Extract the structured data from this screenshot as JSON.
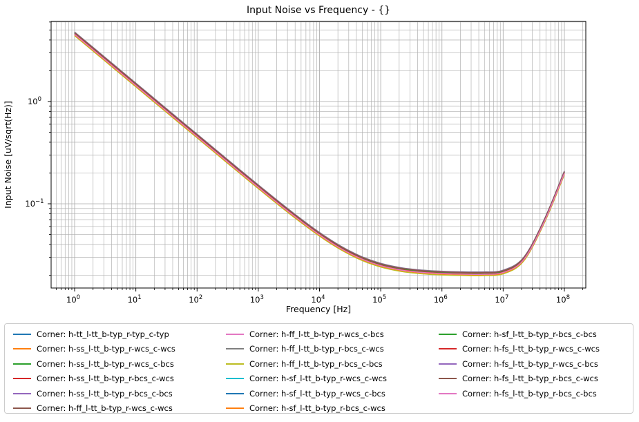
{
  "chart_data": {
    "type": "line",
    "title": "Input Noise vs Frequency - {}",
    "xlabel": "Frequency [Hz]",
    "ylabel": "Input Noise [uV/sqrt(Hz)]",
    "x_scale": "log",
    "y_scale": "log",
    "xlim": [
      0.413,
      224000000
    ],
    "ylim": [
      0.015,
      6.08
    ],
    "x_tick_exponents": [
      0,
      1,
      2,
      3,
      4,
      5,
      6,
      7,
      8
    ],
    "y_tick_exponents": [
      0,
      -1
    ],
    "grid": "both",
    "grid_color": "#b0b0b0",
    "spine_color": "#000000",
    "x": [
      1,
      2.154,
      4.642,
      10,
      21.54,
      46.42,
      100,
      215.4,
      464.2,
      1000,
      2154,
      4642,
      10000,
      21540,
      46420,
      100000,
      215400,
      464200,
      1000000,
      2154000,
      4642000,
      10000000,
      21540000,
      46420000,
      100000000
    ],
    "base_values": [
      4.6,
      3.134,
      2.135,
      1.455,
      0.9913,
      0.6755,
      0.4605,
      0.3141,
      0.2145,
      0.1469,
      0.1012,
      0.07056,
      0.05036,
      0.03745,
      0.02959,
      0.02513,
      0.02276,
      0.02158,
      0.021,
      0.02074,
      0.0207,
      0.0215,
      0.02865,
      0.06649,
      0.201
    ],
    "series": [
      {
        "name": "Corner: h-tt_l-tt_b-typ_r-typ_c-typ",
        "color": "#1f77b4",
        "scale": 1.0
      },
      {
        "name": "Corner: h-ss_l-tt_b-typ_r-wcs_c-wcs",
        "color": "#ff7f0e",
        "scale": 1.01
      },
      {
        "name": "Corner: h-ss_l-tt_b-typ_r-wcs_c-bcs",
        "color": "#2ca02c",
        "scale": 1.022
      },
      {
        "name": "Corner: h-ss_l-tt_b-typ_r-bcs_c-wcs",
        "color": "#d62728",
        "scale": 0.992
      },
      {
        "name": "Corner: h-ss_l-tt_b-typ_r-bcs_c-bcs",
        "color": "#9467bd",
        "scale": 1.015
      },
      {
        "name": "Corner: h-ff_l-tt_b-typ_r-wcs_c-wcs",
        "color": "#8c564b",
        "scale": 1.03
      },
      {
        "name": "Corner: h-ff_l-tt_b-typ_r-wcs_c-bcs",
        "color": "#e377c2",
        "scale": 0.985
      },
      {
        "name": "Corner: h-ff_l-tt_b-typ_r-bcs_c-wcs",
        "color": "#7f7f7f",
        "scale": 1.042
      },
      {
        "name": "Corner: h-ff_l-tt_b-typ_r-bcs_c-bcs",
        "color": "#bcbd22",
        "scale": 0.958
      },
      {
        "name": "Corner: h-sf_l-tt_b-typ_r-wcs_c-wcs",
        "color": "#17becf",
        "scale": 1.005
      },
      {
        "name": "Corner: h-sf_l-tt_b-typ_r-wcs_c-bcs",
        "color": "#1f77b4",
        "scale": 1.025
      },
      {
        "name": "Corner: h-sf_l-tt_b-typ_r-bcs_c-wcs",
        "color": "#ff7f0e",
        "scale": 0.978
      },
      {
        "name": "Corner: h-sf_l-tt_b-typ_r-bcs_c-bcs",
        "color": "#2ca02c",
        "scale": 1.018
      },
      {
        "name": "Corner: h-fs_l-tt_b-typ_r-wcs_c-wcs",
        "color": "#d62728",
        "scale": 0.996
      },
      {
        "name": "Corner: h-fs_l-tt_b-typ_r-wcs_c-bcs",
        "color": "#9467bd",
        "scale": 1.034
      },
      {
        "name": "Corner: h-fs_l-tt_b-typ_r-bcs_c-wcs",
        "color": "#8c564b",
        "scale": 1.028
      },
      {
        "name": "Corner: h-fs_l-tt_b-typ_r-bcs_c-bcs",
        "color": "#e377c2",
        "scale": 0.988
      }
    ],
    "legend": {
      "position": "below-chart",
      "columns": 3,
      "border_color": "#cccccc"
    }
  }
}
